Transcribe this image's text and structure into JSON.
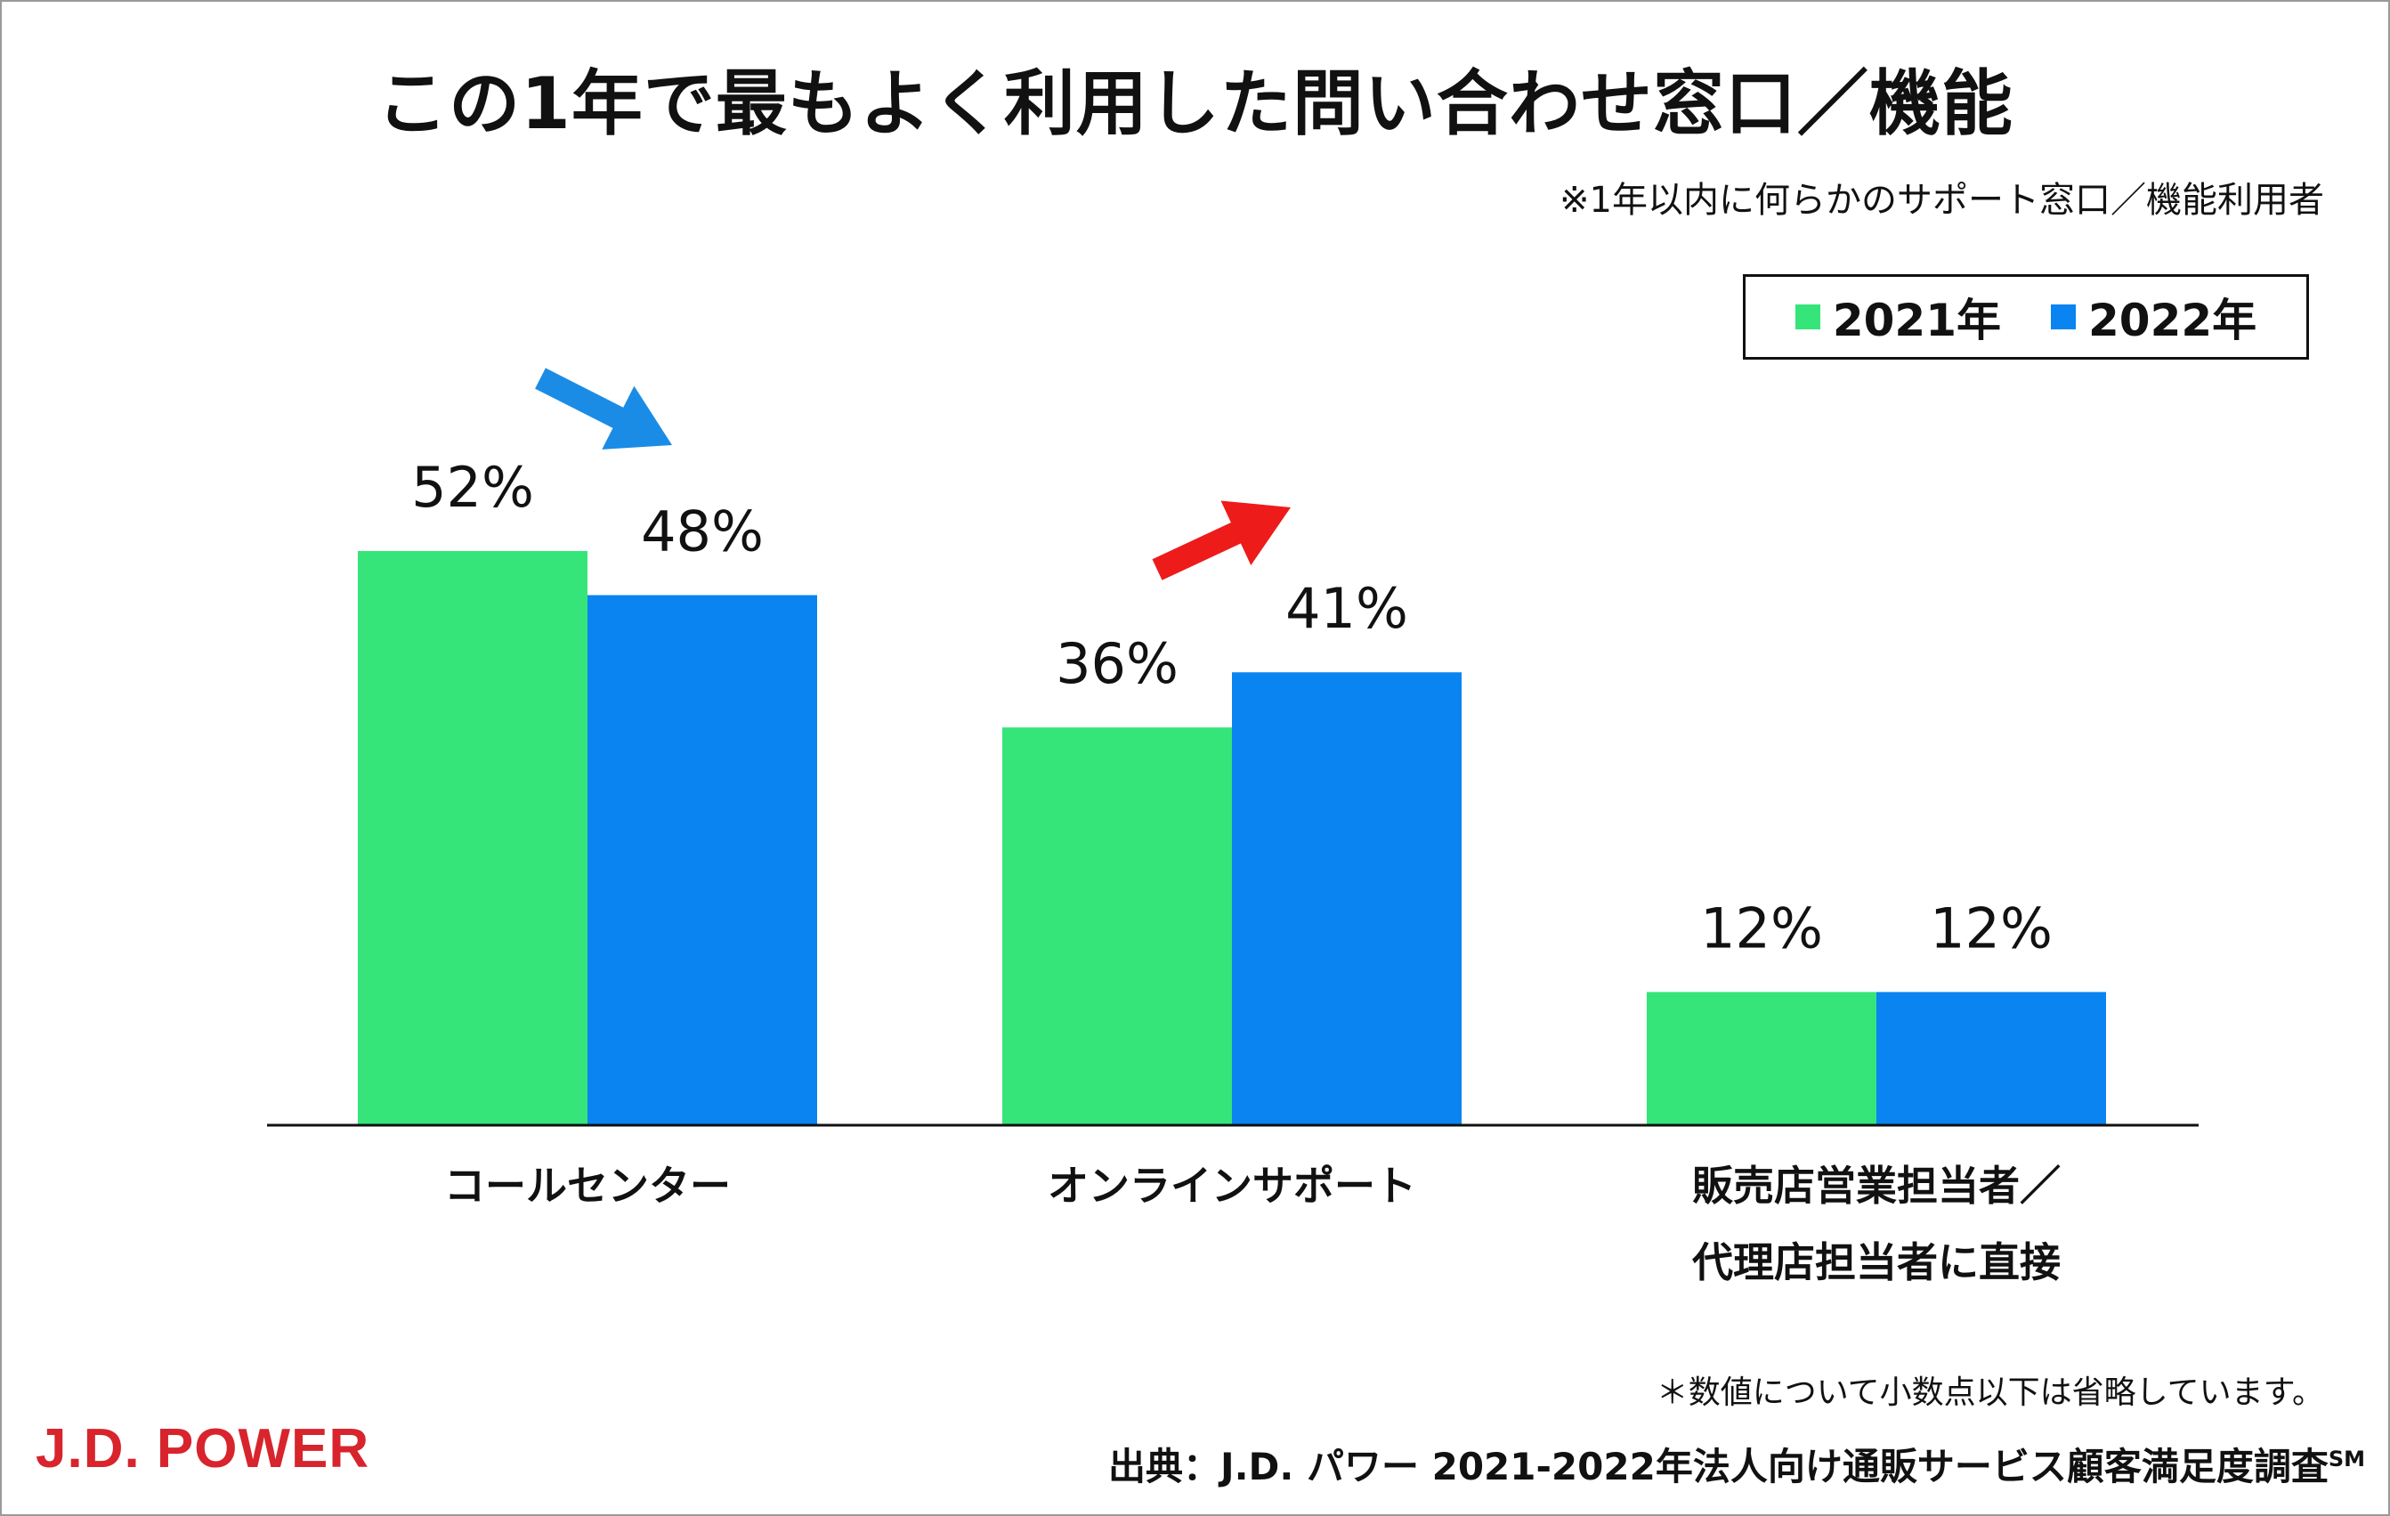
{
  "colors": {
    "series_2021": "#35e57a",
    "series_2022": "#0a84f0",
    "arrow_down": "#1a8ce6",
    "arrow_up": "#ee1b1b",
    "logo": "#d8242c"
  },
  "chart_data": {
    "type": "bar",
    "title": "この1年で最もよく利用した問い合わせ窓口／機能",
    "subtitle": "※1年以内に何らかのサポート窓口／機能利用者",
    "categories": [
      "コールセンター",
      "オンラインサポート",
      "販売店営業担当者／\n代理店担当者に直接"
    ],
    "category_lines": [
      [
        "コールセンター"
      ],
      [
        "オンラインサポート"
      ],
      [
        "販売店営業担当者／",
        "代理店担当者に直接"
      ]
    ],
    "series": [
      {
        "name": "2021年",
        "values": [
          52,
          36,
          12
        ],
        "labels": [
          "52%",
          "36%",
          "12%"
        ]
      },
      {
        "name": "2022年",
        "values": [
          48,
          41,
          12
        ],
        "labels": [
          "48%",
          "41%",
          "12%"
        ]
      }
    ],
    "unit": "%",
    "ylim": [
      0,
      52
    ],
    "grid": false,
    "legend_position": "top-right",
    "annotations": [
      {
        "type": "arrow",
        "direction": "down",
        "category": "コールセンター"
      },
      {
        "type": "arrow",
        "direction": "up",
        "category": "オンラインサポート"
      }
    ]
  },
  "footnote": "＊数値について小数点以下は省略しています。",
  "source": {
    "text": "出典：J.D. パワー 2021-2022年法人向け通販サービス顧客満足度調査",
    "superscript": "SM"
  },
  "logo_text": "J.D. POWER"
}
